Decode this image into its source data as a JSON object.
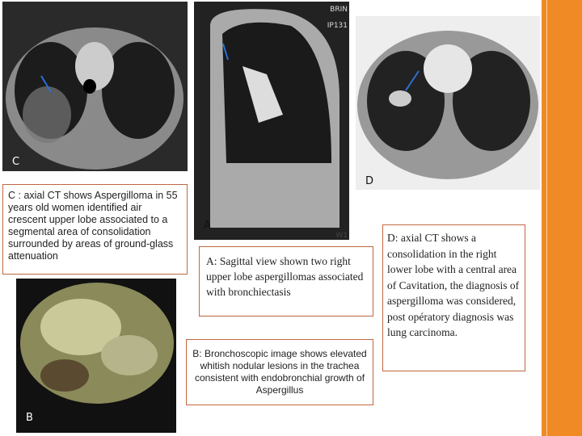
{
  "images": {
    "c": {
      "label": "C"
    },
    "a": {
      "label": "A",
      "corner_texts": [
        "BRIN",
        "IP131",
        "W1"
      ]
    },
    "d": {
      "label": "D"
    },
    "b": {
      "label": "B"
    }
  },
  "captions": {
    "c": "C : axial CT shows Aspergilloma in 55 years old women identified air crescent upper lobe associated to a segmental area of consolidation surrounded by areas of ground-glass attenuation",
    "a": "A: Sagittal view shown two right upper lobe aspergillomas associated with bronchiectasis",
    "b": "B: Bronchoscopic image shows elevated whitish nodular lesions in the trachea consistent with endobronchial growth of Aspergillus",
    "d": "D: axial CT shows a consolidation in the right lower lobe with a central area of Cavitation, the diagnosis of aspergilloma was considered, post opératory diagnosis was lung carcinoma."
  }
}
